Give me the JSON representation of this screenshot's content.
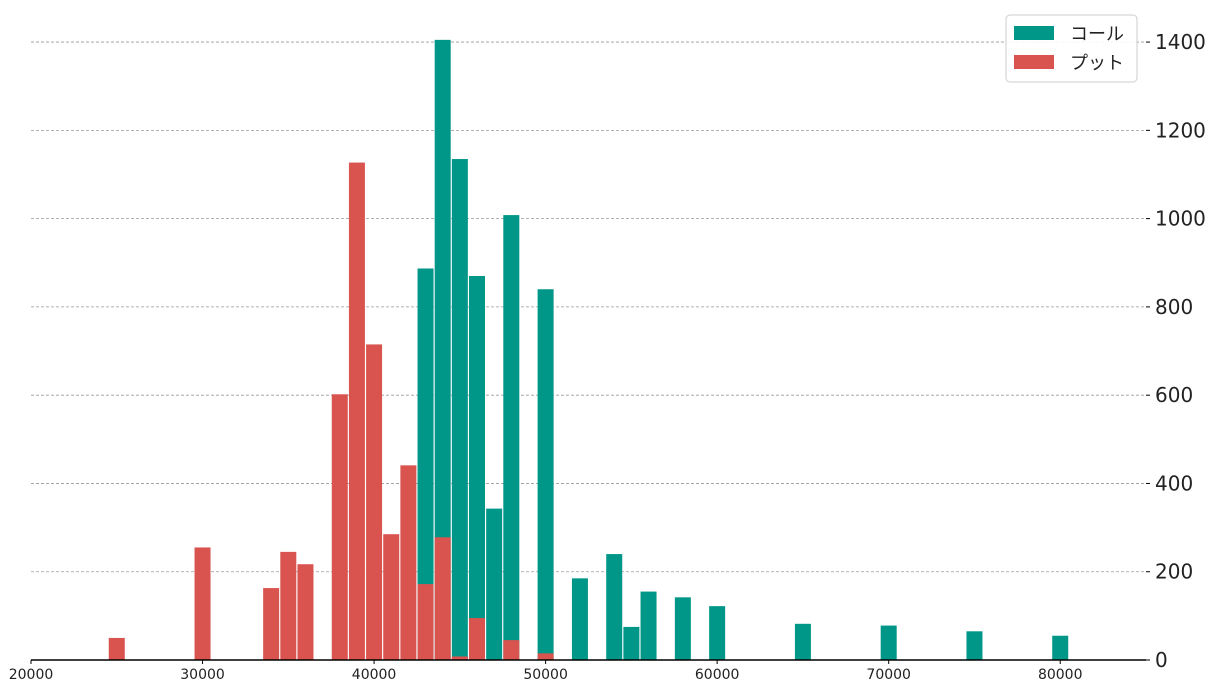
{
  "chart_data": {
    "type": "bar",
    "title": "",
    "xlabel": "",
    "ylabel": "",
    "xlim": [
      20000,
      85000
    ],
    "ylim": [
      0,
      1450
    ],
    "xticks": [
      20000,
      30000,
      40000,
      50000,
      60000,
      70000,
      80000
    ],
    "yticks": [
      0,
      200,
      400,
      600,
      800,
      1000,
      1200,
      1400
    ],
    "y_axis_position": "right",
    "grid": "horizontal dashed",
    "legend_position": "top-right",
    "series": [
      {
        "name": "コール",
        "color": "#009688",
        "x": [
          43000,
          44000,
          45000,
          46000,
          47000,
          48000,
          50000,
          52000,
          54000,
          55000,
          56000,
          58000,
          60000,
          65000,
          70000,
          75000,
          80000
        ],
        "values": [
          887,
          1405,
          1135,
          870,
          343,
          1008,
          840,
          185,
          240,
          75,
          155,
          142,
          122,
          82,
          78,
          65,
          55
        ]
      },
      {
        "name": "プット",
        "color": "#d9534f",
        "x": [
          25000,
          30000,
          34000,
          35000,
          36000,
          38000,
          39000,
          40000,
          41000,
          42000,
          43000,
          44000,
          45000,
          46000,
          48000,
          50000
        ],
        "values": [
          50,
          255,
          163,
          245,
          217,
          602,
          1127,
          715,
          285,
          441,
          172,
          278,
          8,
          95,
          45,
          15
        ]
      }
    ]
  }
}
